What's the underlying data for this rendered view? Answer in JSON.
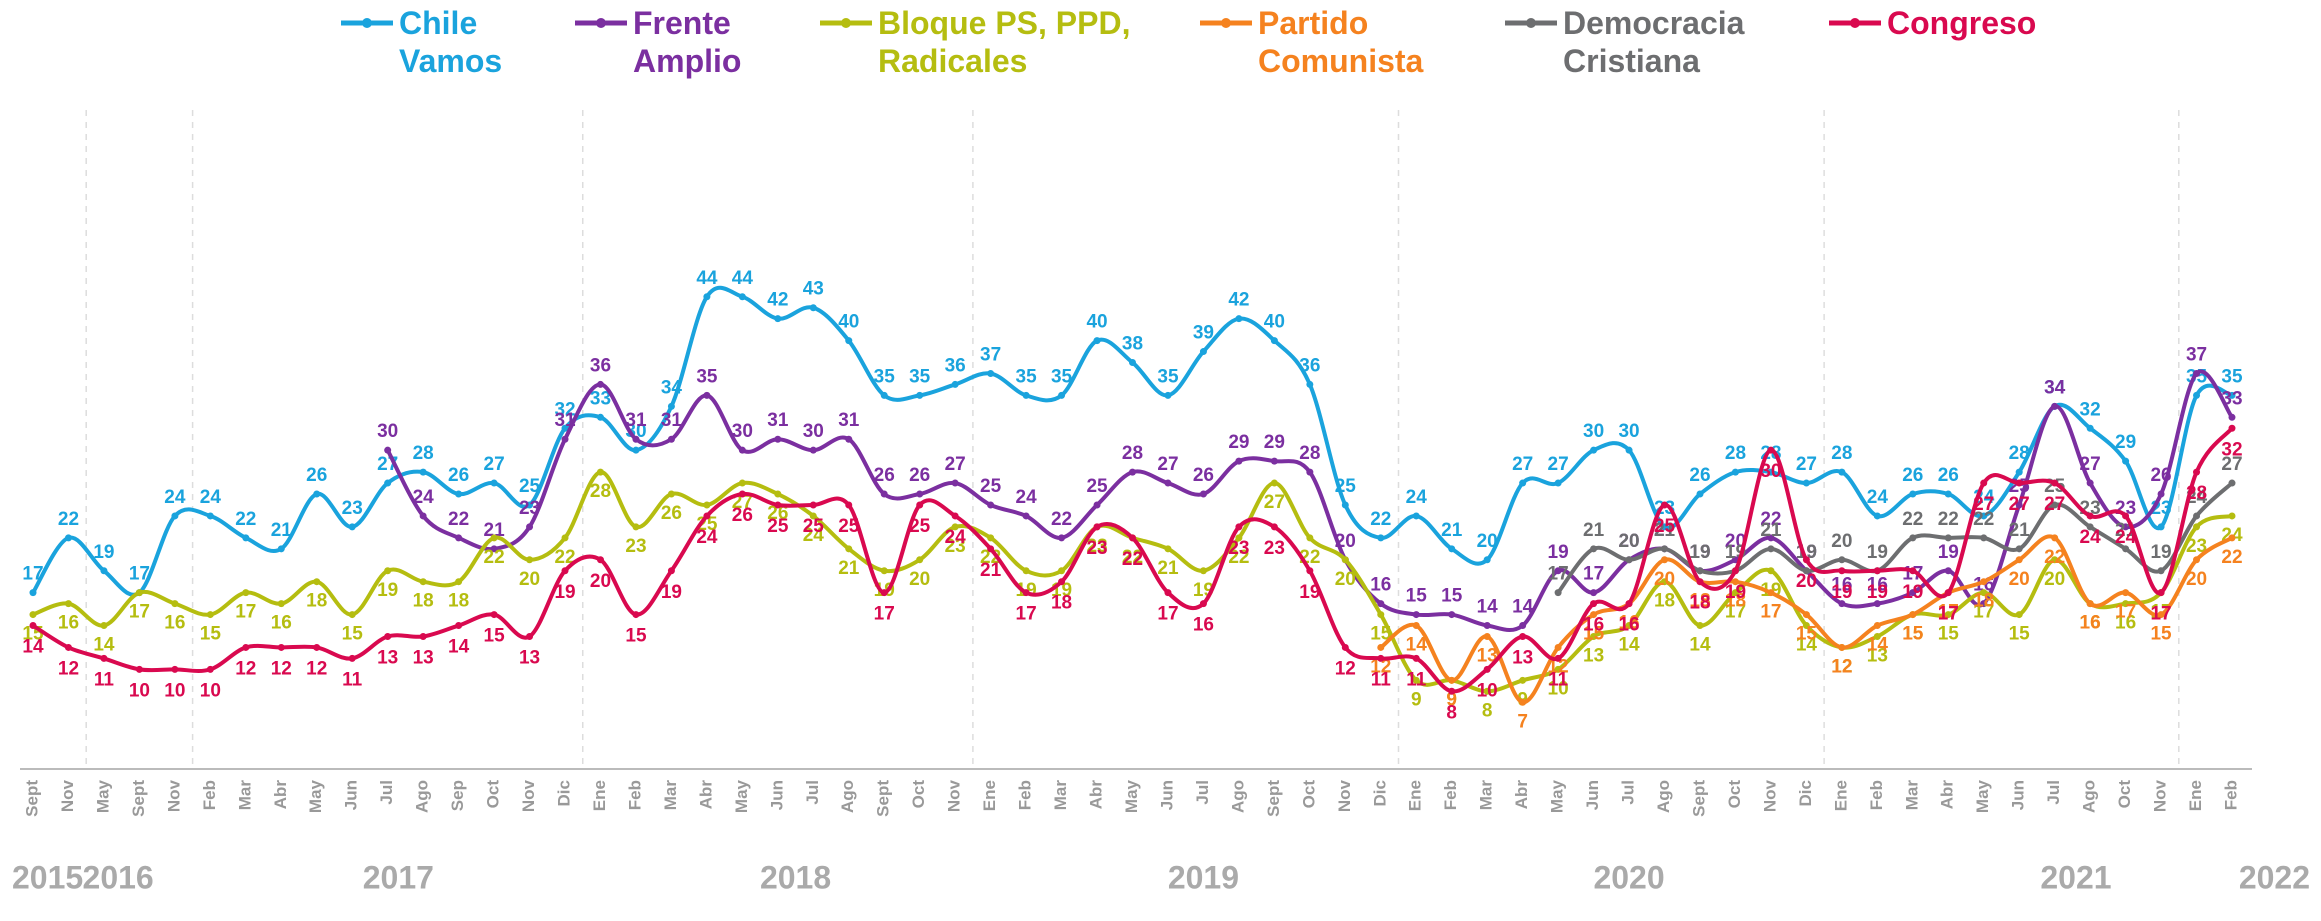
{
  "chart_data": {
    "type": "line",
    "categories": [
      "Sept",
      "Nov",
      "May",
      "Sept",
      "Nov",
      "Feb",
      "Mar",
      "Abr",
      "May",
      "Jun",
      "Jul",
      "Ago",
      "Sep",
      "Oct",
      "Nov",
      "Dic",
      "Ene",
      "Feb",
      "Mar",
      "Abr",
      "May",
      "Jun",
      "Jul",
      "Ago",
      "Sept",
      "Oct",
      "Nov",
      "Ene",
      "Feb",
      "Mar",
      "Abr",
      "May",
      "Jun",
      "Jul",
      "Ago",
      "Sept",
      "Oct",
      "Nov",
      "Dic",
      "Ene",
      "Feb",
      "Mar",
      "Abr",
      "May",
      "Jun",
      "Jul",
      "Ago",
      "Sept",
      "Oct",
      "Nov",
      "Dic",
      "Ene",
      "Feb",
      "Mar",
      "Abr",
      "May",
      "Jun",
      "Jul",
      "Ago",
      "Oct",
      "Nov",
      "Ene",
      "Feb"
    ],
    "years": [
      "2015",
      "2016",
      "2017",
      "2018",
      "2019",
      "2020",
      "2021",
      "2022"
    ],
    "ylim": [
      1,
      50
    ],
    "series": [
      {
        "name": "Chile Vamos",
        "color": "#1aa3dd",
        "values": [
          17,
          22,
          19,
          17,
          24,
          24,
          22,
          21,
          26,
          23,
          27,
          28,
          26,
          27,
          25,
          32,
          33,
          30,
          34,
          44,
          44,
          42,
          43,
          40,
          35,
          35,
          36,
          37,
          35,
          35,
          40,
          38,
          35,
          39,
          42,
          40,
          36,
          25,
          22,
          24,
          21,
          20,
          27,
          27,
          30,
          30,
          23,
          26,
          28,
          28,
          27,
          28,
          24,
          26,
          26,
          24,
          28,
          34,
          32,
          29,
          23,
          35,
          35
        ]
      },
      {
        "name": "Frente Amplio",
        "color": "#7b2fa0",
        "values": [
          null,
          null,
          null,
          null,
          null,
          null,
          null,
          null,
          null,
          null,
          30,
          24,
          22,
          21,
          23,
          31,
          36,
          31,
          31,
          35,
          30,
          31,
          30,
          31,
          26,
          26,
          27,
          25,
          24,
          22,
          25,
          28,
          27,
          26,
          29,
          29,
          28,
          20,
          16,
          15,
          15,
          14,
          14,
          19,
          17,
          20,
          21,
          19,
          20,
          22,
          19,
          16,
          16,
          17,
          19,
          16,
          25,
          34,
          27,
          23,
          26,
          37,
          33
        ]
      },
      {
        "name": "Bloque PS, PPD, Radicales",
        "color": "#b5bd10",
        "values": [
          15,
          16,
          14,
          17,
          16,
          15,
          17,
          16,
          18,
          15,
          19,
          18,
          18,
          22,
          20,
          22,
          28,
          23,
          26,
          25,
          27,
          26,
          24,
          21,
          19,
          20,
          23,
          22,
          19,
          19,
          23,
          22,
          21,
          19,
          22,
          27,
          22,
          20,
          15,
          9,
          9,
          8,
          9,
          10,
          13,
          14,
          18,
          14,
          17,
          19,
          14,
          12,
          13,
          15,
          15,
          17,
          15,
          20,
          16,
          16,
          17,
          23,
          24
        ]
      },
      {
        "name": "Partido Comunista",
        "color": "#f5821f",
        "values": [
          null,
          null,
          null,
          null,
          null,
          null,
          null,
          null,
          null,
          null,
          null,
          null,
          null,
          null,
          null,
          null,
          null,
          null,
          null,
          null,
          null,
          null,
          null,
          null,
          null,
          null,
          null,
          null,
          null,
          null,
          null,
          null,
          null,
          null,
          null,
          null,
          null,
          null,
          12,
          14,
          9,
          13,
          7,
          12,
          15,
          16,
          20,
          18,
          18,
          17,
          15,
          12,
          14,
          15,
          17,
          18,
          20,
          22,
          16,
          17,
          15,
          20,
          22
        ]
      },
      {
        "name": "Democracia Cristiana",
        "color": "#6d6e70",
        "values": [
          null,
          null,
          null,
          null,
          null,
          null,
          null,
          null,
          null,
          null,
          null,
          null,
          null,
          null,
          null,
          null,
          null,
          null,
          null,
          null,
          null,
          null,
          null,
          null,
          null,
          null,
          null,
          null,
          null,
          null,
          null,
          null,
          null,
          null,
          null,
          null,
          null,
          null,
          null,
          null,
          null,
          null,
          null,
          17,
          21,
          20,
          21,
          19,
          19,
          21,
          19,
          20,
          19,
          22,
          22,
          22,
          21,
          25,
          23,
          21,
          19,
          24,
          27
        ]
      },
      {
        "name": "Congreso",
        "color": "#d9094f",
        "values": [
          14,
          12,
          11,
          10,
          10,
          10,
          12,
          12,
          12,
          11,
          13,
          13,
          14,
          15,
          13,
          19,
          20,
          15,
          19,
          24,
          26,
          25,
          25,
          25,
          17,
          25,
          24,
          21,
          17,
          18,
          23,
          22,
          17,
          16,
          23,
          23,
          19,
          12,
          11,
          11,
          8,
          10,
          13,
          11,
          16,
          16,
          25,
          18,
          19,
          30,
          20,
          19,
          19,
          19,
          17,
          27,
          27,
          27,
          24,
          24,
          17,
          28,
          32
        ]
      }
    ]
  }
}
